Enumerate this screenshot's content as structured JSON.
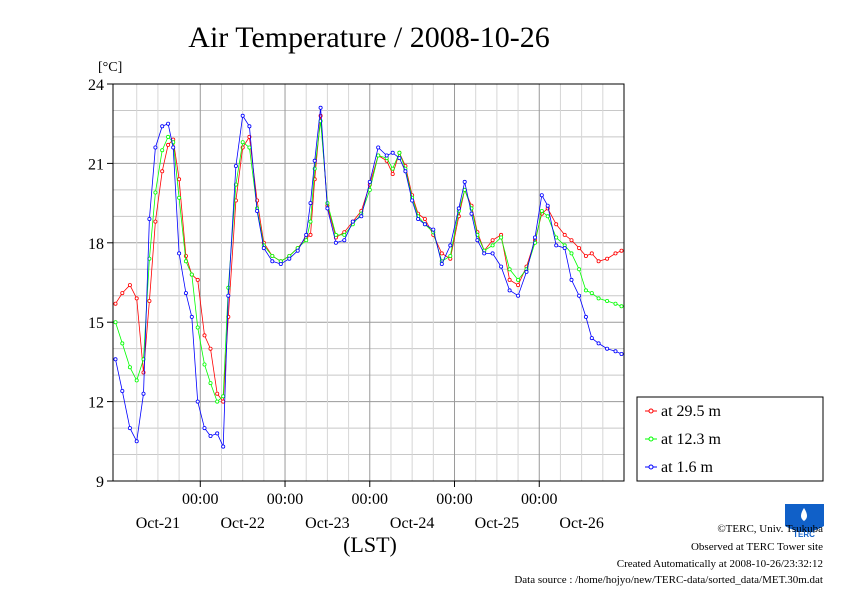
{
  "chart_data": {
    "type": "line",
    "title": "Air Temperature / 2008-10-26",
    "ylabel": "[°C]",
    "xlabel": "(LST)",
    "ylim": [
      9,
      24
    ],
    "y_ticks": [
      "24",
      "21",
      "18",
      "15",
      "12",
      "9"
    ],
    "y_tick_values": [
      24,
      21,
      18,
      15,
      12,
      9
    ],
    "x_time_ticks": [
      "00:00",
      "00:00",
      "00:00",
      "00:00",
      "00:00"
    ],
    "x_date_labels": [
      "Oct-21",
      "Oct-22",
      "Oct-23",
      "Oct-24",
      "Oct-25",
      "Oct-26"
    ],
    "x_time_positions": [
      22.0,
      23.0,
      24.0,
      25.0,
      26.0
    ],
    "x_date_positions": [
      21.5,
      22.5,
      23.5,
      24.5,
      25.5,
      26.5
    ],
    "xlim": [
      20.97,
      27.0
    ],
    "grid": true,
    "legend_position": "right",
    "series": [
      {
        "name": "at 29.5 m",
        "color": "#ff0000",
        "x": [
          21.0,
          21.08,
          21.17,
          21.25,
          21.33,
          21.4,
          21.47,
          21.55,
          21.62,
          21.68,
          21.75,
          21.83,
          21.9,
          21.97,
          22.05,
          22.12,
          22.2,
          22.27,
          22.33,
          22.42,
          22.5,
          22.58,
          22.67,
          22.75,
          22.85,
          22.95,
          23.05,
          23.15,
          23.25,
          23.3,
          23.35,
          23.42,
          23.5,
          23.6,
          23.7,
          23.8,
          23.9,
          24.0,
          24.1,
          24.2,
          24.27,
          24.35,
          24.42,
          24.5,
          24.57,
          24.65,
          24.75,
          24.85,
          24.95,
          25.05,
          25.12,
          25.2,
          25.27,
          25.35,
          25.45,
          25.55,
          25.65,
          25.75,
          25.85,
          25.95,
          26.03,
          26.1,
          26.2,
          26.3,
          26.38,
          26.47,
          26.55,
          26.62,
          26.7,
          26.8,
          26.9,
          26.97
        ],
        "y": [
          15.7,
          16.1,
          16.4,
          15.9,
          13.1,
          15.8,
          18.8,
          20.7,
          21.7,
          21.9,
          20.4,
          17.5,
          16.8,
          16.6,
          14.5,
          14.0,
          12.3,
          12.0,
          15.2,
          19.6,
          21.6,
          22.0,
          19.6,
          18.0,
          17.5,
          17.3,
          17.5,
          17.8,
          18.2,
          18.3,
          20.4,
          22.8,
          19.4,
          18.2,
          18.4,
          18.8,
          19.2,
          20.2,
          21.3,
          21.1,
          20.6,
          21.4,
          20.9,
          19.8,
          19.1,
          18.9,
          18.3,
          17.6,
          17.4,
          19.0,
          20.0,
          19.4,
          18.4,
          17.7,
          18.1,
          18.3,
          16.6,
          16.4,
          17.1,
          18.1,
          19.1,
          19.3,
          18.7,
          18.3,
          18.1,
          17.8,
          17.5,
          17.6,
          17.3,
          17.4,
          17.6,
          17.7
        ]
      },
      {
        "name": "at 12.3 m",
        "color": "#00ff00",
        "x": [
          21.0,
          21.08,
          21.17,
          21.25,
          21.33,
          21.4,
          21.47,
          21.55,
          21.62,
          21.68,
          21.75,
          21.83,
          21.9,
          21.97,
          22.05,
          22.12,
          22.2,
          22.27,
          22.33,
          22.42,
          22.5,
          22.58,
          22.67,
          22.75,
          22.85,
          22.95,
          23.05,
          23.15,
          23.25,
          23.3,
          23.35,
          23.42,
          23.5,
          23.6,
          23.7,
          23.8,
          23.9,
          24.0,
          24.1,
          24.2,
          24.27,
          24.35,
          24.42,
          24.5,
          24.57,
          24.65,
          24.75,
          24.85,
          24.95,
          25.05,
          25.12,
          25.2,
          25.27,
          25.35,
          25.45,
          25.55,
          25.65,
          25.75,
          25.85,
          25.95,
          26.03,
          26.1,
          26.2,
          26.3,
          26.38,
          26.47,
          26.55,
          26.62,
          26.7,
          26.8,
          26.9,
          26.97
        ],
        "y": [
          15.0,
          14.2,
          13.3,
          12.8,
          13.6,
          17.4,
          19.9,
          21.5,
          22.0,
          21.8,
          19.7,
          17.3,
          16.8,
          14.8,
          13.4,
          12.7,
          12.0,
          12.2,
          16.3,
          20.2,
          21.8,
          21.6,
          19.3,
          17.9,
          17.5,
          17.3,
          17.5,
          17.8,
          18.1,
          18.8,
          20.8,
          22.6,
          19.5,
          18.3,
          18.3,
          18.7,
          19.1,
          20.0,
          21.3,
          21.2,
          20.8,
          21.4,
          20.8,
          19.7,
          19.0,
          18.7,
          18.4,
          17.3,
          17.5,
          19.2,
          20.0,
          19.3,
          18.3,
          17.7,
          17.9,
          18.2,
          17.0,
          16.6,
          17.0,
          18.0,
          19.2,
          19.0,
          18.2,
          17.9,
          17.6,
          17.0,
          16.2,
          16.1,
          15.9,
          15.8,
          15.7,
          15.6
        ]
      },
      {
        "name": "at 1.6 m",
        "color": "#0000ff",
        "x": [
          21.0,
          21.08,
          21.17,
          21.25,
          21.33,
          21.4,
          21.47,
          21.55,
          21.62,
          21.68,
          21.75,
          21.83,
          21.9,
          21.97,
          22.05,
          22.12,
          22.2,
          22.27,
          22.33,
          22.42,
          22.5,
          22.58,
          22.67,
          22.75,
          22.85,
          22.95,
          23.05,
          23.15,
          23.25,
          23.3,
          23.35,
          23.42,
          23.5,
          23.6,
          23.7,
          23.8,
          23.9,
          24.0,
          24.1,
          24.2,
          24.27,
          24.35,
          24.42,
          24.5,
          24.57,
          24.65,
          24.75,
          24.85,
          24.95,
          25.05,
          25.12,
          25.2,
          25.27,
          25.35,
          25.45,
          25.55,
          25.65,
          25.75,
          25.85,
          25.95,
          26.03,
          26.1,
          26.2,
          26.3,
          26.38,
          26.47,
          26.55,
          26.62,
          26.7,
          26.8,
          26.9,
          26.97
        ],
        "y": [
          13.6,
          12.4,
          11.0,
          10.5,
          12.3,
          18.9,
          21.6,
          22.4,
          22.5,
          21.6,
          17.6,
          16.1,
          15.2,
          12.0,
          11.0,
          10.7,
          10.8,
          10.3,
          16.0,
          20.9,
          22.8,
          22.4,
          19.2,
          17.8,
          17.3,
          17.2,
          17.4,
          17.7,
          18.3,
          19.5,
          21.1,
          23.1,
          19.3,
          18.0,
          18.1,
          18.8,
          19.0,
          20.3,
          21.6,
          21.3,
          21.4,
          21.2,
          20.7,
          19.6,
          18.9,
          18.7,
          18.5,
          17.2,
          17.9,
          19.3,
          20.3,
          19.1,
          18.1,
          17.6,
          17.6,
          17.1,
          16.2,
          16.0,
          16.9,
          18.2,
          19.8,
          19.4,
          17.9,
          17.8,
          16.6,
          16.0,
          15.2,
          14.4,
          14.2,
          14.0,
          13.9,
          13.8
        ]
      }
    ]
  },
  "footer": {
    "copyright": "©TERC, Univ. Tsukuba",
    "observed": "Observed at TERC Tower site",
    "created": "Created Automatically at 2008-10-26/23:32:12",
    "source": "Data source : /home/hojyo/new/TERC-data/sorted_data/MET.30m.dat"
  },
  "logo": {
    "text": "TERC"
  }
}
